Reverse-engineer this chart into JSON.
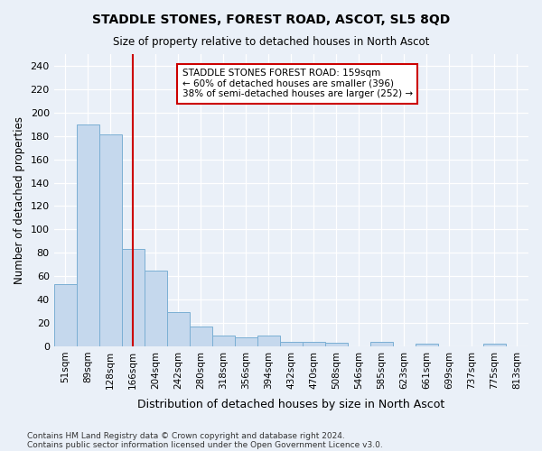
{
  "title": "STADDLE STONES, FOREST ROAD, ASCOT, SL5 8QD",
  "subtitle": "Size of property relative to detached houses in North Ascot",
  "xlabel": "Distribution of detached houses by size in North Ascot",
  "ylabel": "Number of detached properties",
  "footnote1": "Contains HM Land Registry data © Crown copyright and database right 2024.",
  "footnote2": "Contains public sector information licensed under the Open Government Licence v3.0.",
  "bin_labels": [
    "51sqm",
    "89sqm",
    "128sqm",
    "166sqm",
    "204sqm",
    "242sqm",
    "280sqm",
    "318sqm",
    "356sqm",
    "394sqm",
    "432sqm",
    "470sqm",
    "508sqm",
    "546sqm",
    "585sqm",
    "623sqm",
    "661sqm",
    "699sqm",
    "737sqm",
    "775sqm",
    "813sqm"
  ],
  "bar_values": [
    53,
    190,
    181,
    83,
    65,
    29,
    17,
    9,
    8,
    9,
    4,
    4,
    3,
    0,
    4,
    0,
    2,
    0,
    0,
    2,
    0
  ],
  "bar_color": "#c5d8ed",
  "bar_edge_color": "#7bafd4",
  "background_color": "#eaf0f8",
  "grid_color": "#ffffff",
  "red_line_x": 3,
  "annotation_text": "STADDLE STONES FOREST ROAD: 159sqm\n← 60% of detached houses are smaller (396)\n38% of semi-detached houses are larger (252) →",
  "annotation_box_color": "#ffffff",
  "annotation_box_edge": "#cc0000",
  "red_line_color": "#cc0000",
  "ylim": [
    0,
    250
  ],
  "yticks": [
    0,
    20,
    40,
    60,
    80,
    100,
    120,
    140,
    160,
    180,
    200,
    220,
    240
  ]
}
